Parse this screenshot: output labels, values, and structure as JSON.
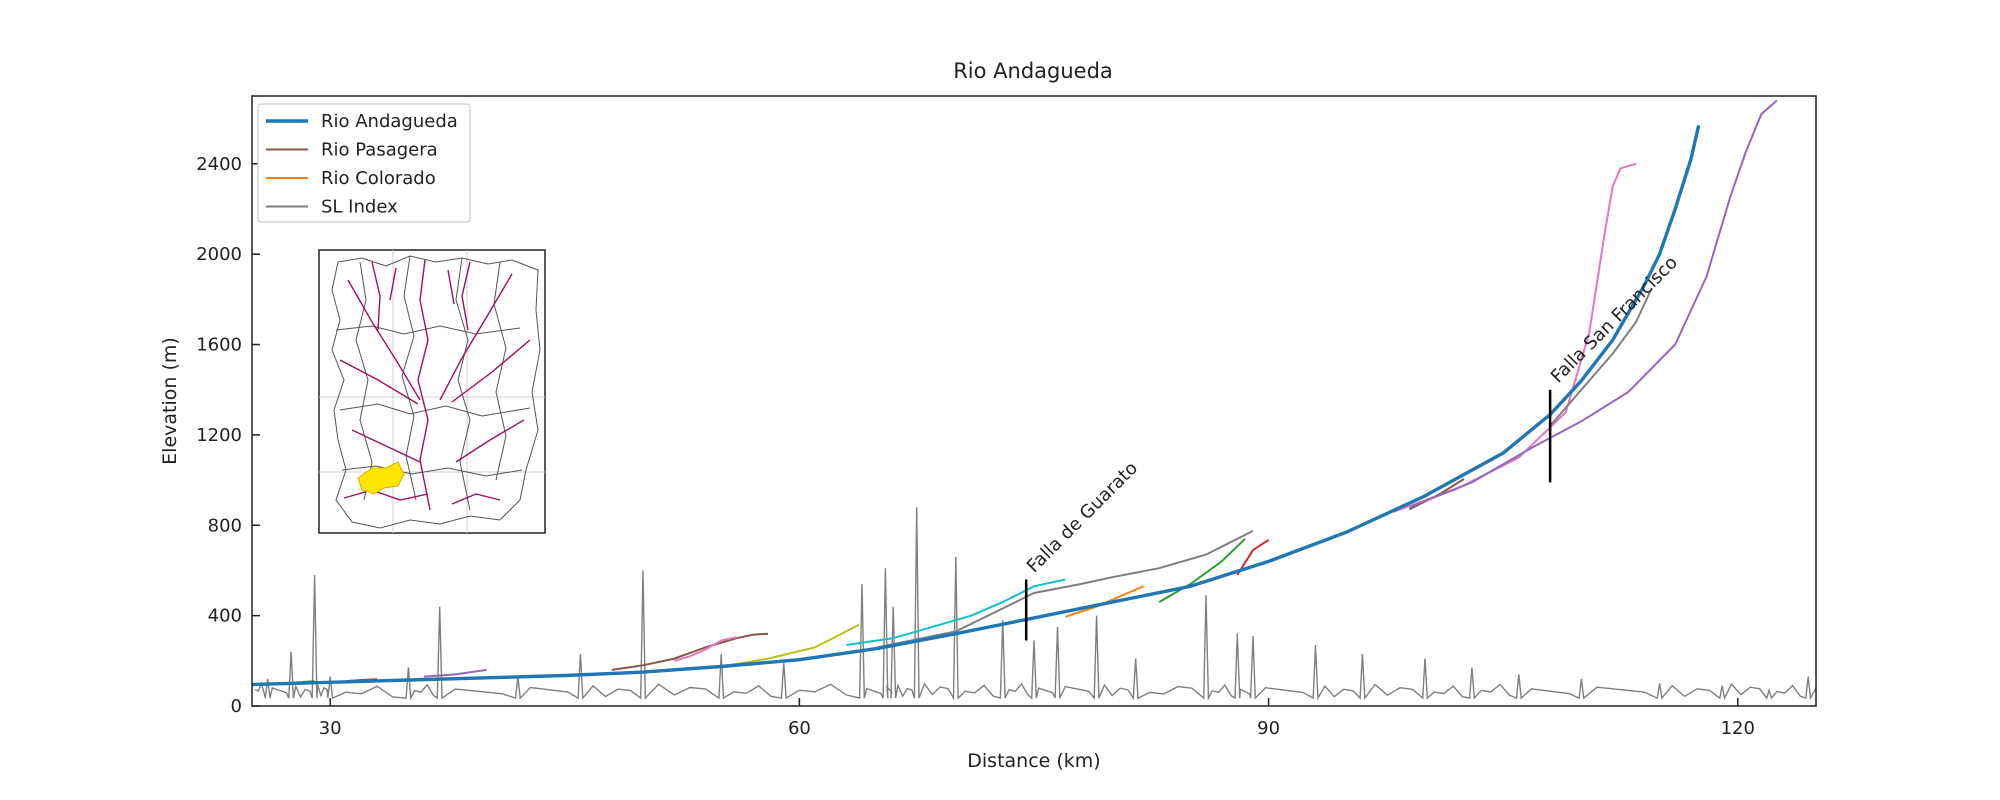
{
  "chart_data": {
    "type": "line",
    "title": "Rio Andagueda",
    "xlabel": "Distance (km)",
    "ylabel": "Elevation (m)",
    "xlim": [
      25,
      125
    ],
    "ylim": [
      0,
      2700
    ],
    "xticks": [
      30,
      60,
      90,
      120
    ],
    "yticks": [
      0,
      400,
      800,
      1200,
      1600,
      2000,
      2400
    ],
    "grid": false,
    "legend_position": "top-left",
    "legend": [
      {
        "name": "Rio Andagueda",
        "color": "#1f77b4"
      },
      {
        "name": "Rio Pasagera",
        "color": "#8c564b"
      },
      {
        "name": "Rio Colorado",
        "color": "#ff7f0e"
      },
      {
        "name": "SL Index",
        "color": "#7f7f7f"
      }
    ],
    "main_profile": {
      "name": "Rio Andagueda",
      "color": "#1f77b4",
      "x": [
        25,
        30,
        35,
        40,
        45,
        50,
        55,
        60,
        65,
        70,
        75,
        80,
        85,
        90,
        95,
        100,
        105,
        108,
        110,
        112,
        114,
        115,
        116,
        117,
        117.5
      ],
      "y": [
        95,
        105,
        115,
        125,
        135,
        150,
        175,
        205,
        255,
        320,
        390,
        460,
        530,
        640,
        770,
        930,
        1120,
        1290,
        1440,
        1620,
        1860,
        2000,
        2200,
        2420,
        2570
      ]
    },
    "tributaries": [
      {
        "color": "#2ca02c",
        "x": [
          27,
          28,
          29
        ],
        "y": [
          100,
          105,
          110
        ]
      },
      {
        "color": "#d62728",
        "x": [
          31,
          32,
          33
        ],
        "y": [
          110,
          115,
          118
        ]
      },
      {
        "color": "#9467bd",
        "x": [
          36,
          38,
          40
        ],
        "y": [
          130,
          140,
          160
        ]
      },
      {
        "color": "#8c564b",
        "x": [
          48,
          50,
          52,
          54,
          56,
          57,
          58
        ],
        "y": [
          160,
          180,
          210,
          260,
          300,
          315,
          320
        ]
      },
      {
        "color": "#e377c2",
        "x": [
          52,
          53,
          54,
          55,
          56
        ],
        "y": [
          200,
          220,
          250,
          290,
          305
        ]
      },
      {
        "color": "#bcbd22",
        "x": [
          55,
          58,
          61,
          63,
          63.8
        ],
        "y": [
          175,
          210,
          260,
          330,
          360
        ]
      },
      {
        "color": "#17becf",
        "x": [
          63,
          66,
          68,
          71,
          73,
          75,
          77
        ],
        "y": [
          270,
          300,
          340,
          400,
          460,
          530,
          560
        ]
      },
      {
        "color": "#7f7f7f",
        "x": [
          65,
          70,
          75,
          78,
          80,
          83,
          86,
          88,
          89
        ],
        "y": [
          260,
          330,
          500,
          540,
          570,
          610,
          670,
          740,
          775
        ]
      },
      {
        "color": "#ff7f0e",
        "x": [
          77,
          79,
          81,
          82
        ],
        "y": [
          395,
          440,
          500,
          530
        ]
      },
      {
        "color": "#2ca02c",
        "x": [
          83,
          85,
          87,
          88.5
        ],
        "y": [
          460,
          540,
          640,
          740
        ]
      },
      {
        "color": "#d62728",
        "x": [
          88,
          89,
          90
        ],
        "y": [
          580,
          690,
          735
        ]
      },
      {
        "color": "#8c564b",
        "x": [
          99,
          101,
          102.5
        ],
        "y": [
          870,
          940,
          1005
        ]
      },
      {
        "color": "#e377c2",
        "x": [
          98,
          102,
          106,
          109,
          110.5,
          111.5,
          112,
          112.5,
          113.5
        ],
        "y": [
          860,
          960,
          1100,
          1300,
          1650,
          2100,
          2300,
          2380,
          2400
        ]
      },
      {
        "color": "#7f7f7f",
        "x": [
          108,
          110,
          112,
          113.5,
          114.5
        ],
        "y": [
          1240,
          1400,
          1560,
          1700,
          1850
        ]
      },
      {
        "color": "#9467bd",
        "x": [
          99,
          103,
          107,
          110,
          113,
          116,
          118,
          119.5,
          120.5,
          121.5,
          122.5
        ],
        "y": [
          880,
          990,
          1150,
          1260,
          1390,
          1600,
          1900,
          2250,
          2450,
          2620,
          2680
        ]
      }
    ],
    "sl_index": {
      "name": "SL Index",
      "color": "#7f7f7f",
      "baseline": 35,
      "peaks": [
        [
          26,
          120
        ],
        [
          27.5,
          240
        ],
        [
          29,
          580
        ],
        [
          30,
          130
        ],
        [
          35,
          170
        ],
        [
          37,
          440
        ],
        [
          42,
          130
        ],
        [
          46,
          230
        ],
        [
          50,
          600
        ],
        [
          55,
          230
        ],
        [
          59,
          190
        ],
        [
          64,
          540
        ],
        [
          65.5,
          610
        ],
        [
          66,
          440
        ],
        [
          67.5,
          880
        ],
        [
          70,
          660
        ],
        [
          73,
          380
        ],
        [
          75,
          290
        ],
        [
          76.5,
          350
        ],
        [
          79,
          400
        ],
        [
          81.5,
          210
        ],
        [
          86,
          490
        ],
        [
          88,
          320
        ],
        [
          89,
          310
        ],
        [
          93,
          270
        ],
        [
          96,
          230
        ],
        [
          100,
          210
        ],
        [
          103,
          170
        ],
        [
          106,
          140
        ],
        [
          110,
          120
        ],
        [
          115,
          100
        ],
        [
          119,
          90
        ],
        [
          122,
          70
        ],
        [
          124.5,
          130
        ]
      ]
    },
    "annotations": [
      {
        "text": "Falla de Guarato",
        "x": 74.5,
        "y_bottom": 290,
        "y_top": 560
      },
      {
        "text": "Falla San Francisco",
        "x": 108,
        "y_bottom": 990,
        "y_top": 1400
      }
    ],
    "inset": "map"
  }
}
